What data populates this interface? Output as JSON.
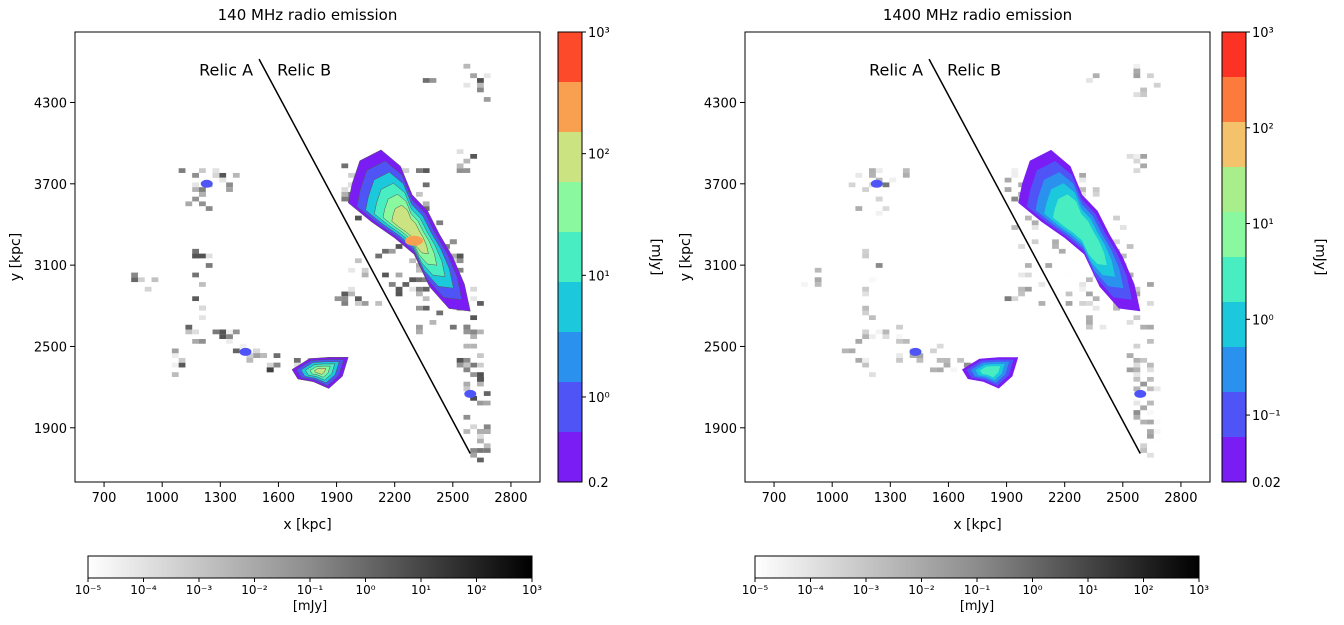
{
  "chart_data": [
    {
      "type": "heatmap",
      "title": "140 MHz radio emission",
      "xlabel": "x [kpc]",
      "ylabel": "y [kpc]",
      "xlim": [
        550,
        2950
      ],
      "ylim": [
        1500,
        4820
      ],
      "x_ticks": [
        700,
        1000,
        1300,
        1600,
        1900,
        2200,
        2500,
        2800
      ],
      "y_ticks": [
        1900,
        2500,
        3100,
        3700,
        4300
      ],
      "annotations": {
        "left_label": "Relic A",
        "right_label": "Relic B",
        "separator_line": [
          [
            1500,
            4620
          ],
          [
            2590,
            1710
          ]
        ]
      },
      "contour_colorbar": {
        "label": "[mJy]",
        "min_label": "0.2",
        "ticks": [
          {
            "value": 1,
            "label": "10⁰"
          },
          {
            "value": 10,
            "label": "10¹"
          },
          {
            "value": 100,
            "label": "10²"
          },
          {
            "value": 1000,
            "label": "10³"
          }
        ],
        "range": [
          0.2,
          1000
        ],
        "levels": 9,
        "colors": [
          "#7a1cf4",
          "#4f54f7",
          "#2a92ee",
          "#1cc8dc",
          "#48eec1",
          "#89f89e",
          "#cbe380",
          "#f9a050",
          "#fc4a2a"
        ]
      },
      "gray_colorbar": {
        "label": "[mJy]",
        "range_exponents": [
          -5,
          3
        ],
        "ticks": [
          "10⁻⁵",
          "10⁻⁴",
          "10⁻³",
          "10⁻²",
          "10⁻¹",
          "10⁰",
          "10¹",
          "10²",
          "10³"
        ]
      }
    },
    {
      "type": "heatmap",
      "title": "1400 MHz radio emission",
      "xlabel": "x [kpc]",
      "ylabel": "y [kpc]",
      "xlim": [
        550,
        2950
      ],
      "ylim": [
        1500,
        4820
      ],
      "x_ticks": [
        700,
        1000,
        1300,
        1600,
        1900,
        2200,
        2500,
        2800
      ],
      "y_ticks": [
        1900,
        2500,
        3100,
        3700,
        4300
      ],
      "annotations": {
        "left_label": "Relic A",
        "right_label": "Relic B",
        "separator_line": [
          [
            1500,
            4620
          ],
          [
            2590,
            1710
          ]
        ]
      },
      "contour_colorbar": {
        "label": "[mJy]",
        "min_label": "0.02",
        "ticks": [
          {
            "value": 0.1,
            "label": "10⁻¹"
          },
          {
            "value": 1,
            "label": "10⁰"
          },
          {
            "value": 10,
            "label": "10¹"
          },
          {
            "value": 100,
            "label": "10²"
          },
          {
            "value": 1000,
            "label": "10³"
          }
        ],
        "range": [
          0.02,
          1000
        ],
        "levels": 10,
        "colors": [
          "#7a1cf4",
          "#4f54f7",
          "#2a92ee",
          "#1cc8dc",
          "#48eec1",
          "#89f89e",
          "#a8ef8c",
          "#f5c26c",
          "#fb7a3c",
          "#fc3324"
        ]
      },
      "gray_colorbar": {
        "label": "[mJy]",
        "range_exponents": [
          -5,
          3
        ],
        "ticks": [
          "10⁻⁵",
          "10⁻⁴",
          "10⁻³",
          "10⁻²",
          "10⁻¹",
          "10⁰",
          "10¹",
          "10²",
          "10³"
        ]
      }
    }
  ]
}
